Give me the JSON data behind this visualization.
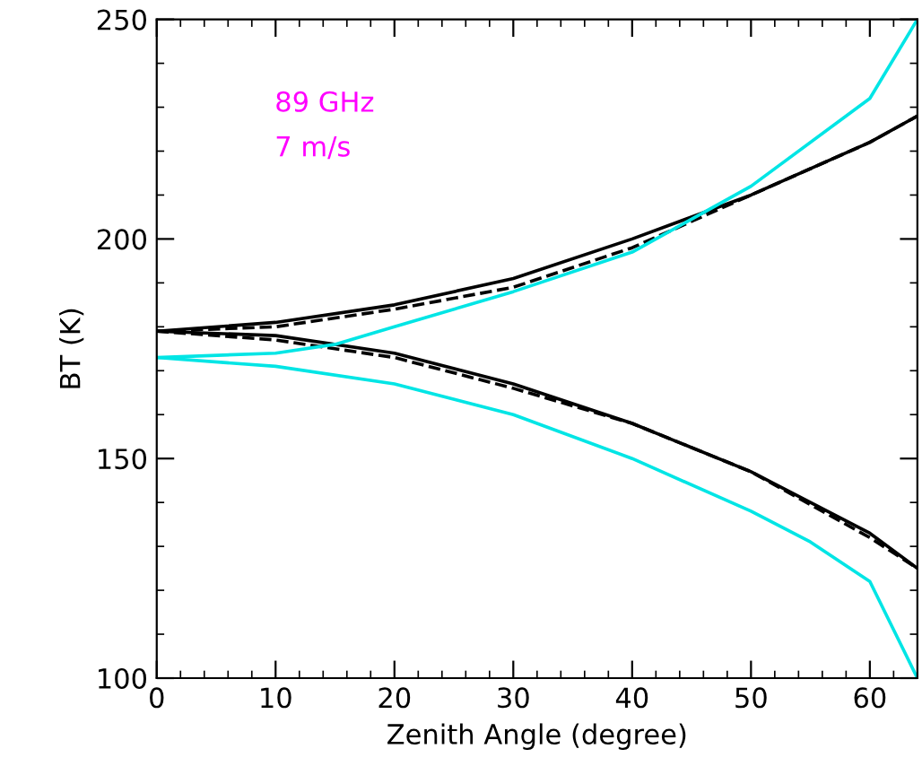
{
  "chart_data": {
    "type": "line",
    "xlabel": "Zenith Angle (degree)",
    "ylabel": "BT (K)",
    "xlim": [
      0,
      64
    ],
    "ylim": [
      100,
      250
    ],
    "xticks": [
      0,
      10,
      20,
      30,
      40,
      50,
      60
    ],
    "yticks": [
      100,
      150,
      200,
      250
    ],
    "grid": false,
    "annotations": [
      "89 GHz",
      "7 m/s"
    ],
    "series": [
      {
        "color": "#000000",
        "line_style": "solid",
        "x": [
          0,
          10,
          20,
          30,
          40,
          50,
          60,
          64
        ],
        "values": [
          179,
          181,
          185,
          191,
          200,
          210,
          222,
          228
        ]
      },
      {
        "color": "#000000",
        "line_style": "dashed",
        "x": [
          0,
          10,
          20,
          30,
          40,
          50,
          60,
          64
        ],
        "values": [
          179,
          180,
          184,
          189,
          198,
          210,
          222,
          228
        ]
      },
      {
        "color": "#000000",
        "line_style": "solid",
        "x": [
          0,
          10,
          20,
          30,
          40,
          50,
          60,
          64
        ],
        "values": [
          179,
          178,
          174,
          167,
          158,
          147,
          133,
          125
        ]
      },
      {
        "color": "#000000",
        "line_style": "dashed",
        "x": [
          0,
          10,
          20,
          30,
          40,
          50,
          60,
          64
        ],
        "values": [
          179,
          177,
          173,
          166,
          158,
          147,
          132,
          125
        ]
      },
      {
        "color": "#00e5e5",
        "line_style": "solid",
        "x": [
          0,
          10,
          15,
          20,
          30,
          40,
          50,
          60,
          64
        ],
        "values": [
          173,
          174,
          176,
          180,
          188,
          197,
          212,
          232,
          250
        ]
      },
      {
        "color": "#00e5e5",
        "line_style": "solid",
        "x": [
          0,
          10,
          20,
          30,
          40,
          50,
          55,
          60,
          64
        ],
        "values": [
          173,
          171,
          167,
          160,
          150,
          138,
          131,
          122,
          100
        ]
      }
    ]
  }
}
